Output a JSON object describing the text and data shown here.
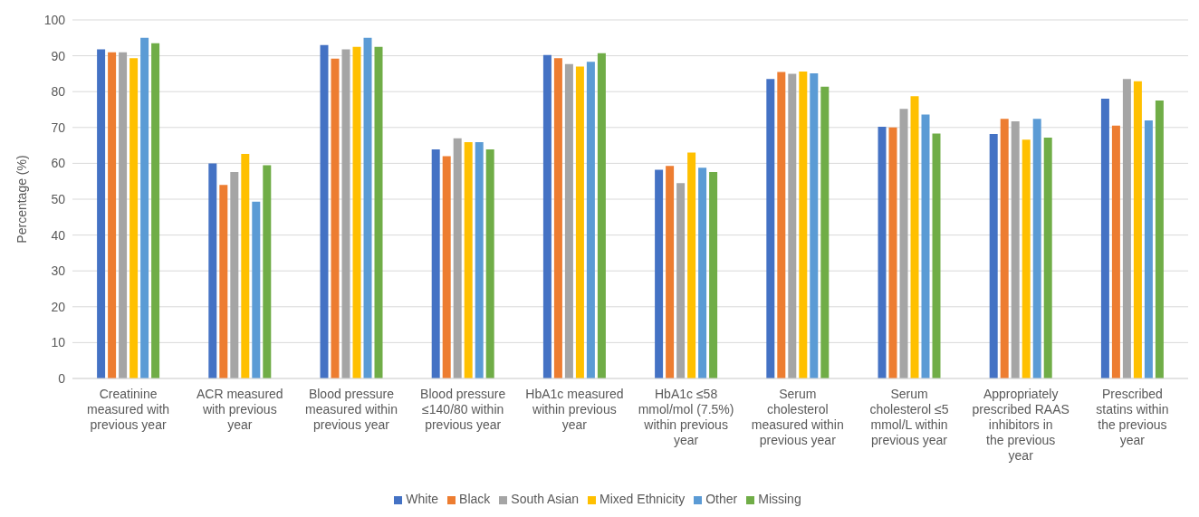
{
  "chart_data": {
    "type": "bar",
    "ylabel": "Percentage (%)",
    "categories": [
      "Creatinine measured with previous year",
      "ACR measured with previous year",
      "Blood pressure measured within previous year",
      "Blood pressure ≤140/80 within previous year",
      "HbA1c measured within previous year",
      "HbA1c ≤58 mmol/mol (7.5%) within previous year",
      "Serum cholesterol measured within previous year",
      "Serum cholesterol ≤5 mmol/L within previous year",
      "Appropriately prescribed RAAS inhibitors in the previous year",
      "Prescribed statins within the previous year"
    ],
    "series": [
      {
        "name": "White",
        "color": "#4472c4",
        "values": [
          91.8,
          60,
          93,
          63.9,
          90.2,
          58.2,
          83.5,
          70.2,
          68.2,
          78
        ]
      },
      {
        "name": "Black",
        "color": "#ed7d31",
        "values": [
          91,
          54,
          89.2,
          62,
          89.3,
          59.3,
          85.5,
          70,
          72.4,
          70.5
        ]
      },
      {
        "name": "South Asian",
        "color": "#a5a5a5",
        "values": [
          91,
          57.6,
          91.8,
          67,
          87.7,
          54.5,
          85,
          75.2,
          71.7,
          83.5
        ]
      },
      {
        "name": "Mixed Ethnicity",
        "color": "#ffc000",
        "values": [
          89.3,
          62.6,
          92.5,
          65.9,
          87,
          63,
          85.6,
          78.7,
          66.6,
          82.9
        ]
      },
      {
        "name": "Other",
        "color": "#5b9bd5",
        "values": [
          95,
          49.3,
          95,
          65.9,
          88.3,
          58.8,
          85.1,
          73.6,
          72.4,
          72
        ]
      },
      {
        "name": "Missing",
        "color": "#70ad47",
        "values": [
          93.5,
          59.5,
          92.5,
          63.9,
          90.7,
          57.6,
          81.4,
          68.3,
          67.2,
          77.5
        ]
      }
    ],
    "ylim": [
      0,
      100
    ],
    "yticks": [
      0,
      10,
      20,
      30,
      40,
      50,
      60,
      70,
      80,
      90,
      100
    ],
    "grid": "y",
    "legend": "bottom"
  }
}
